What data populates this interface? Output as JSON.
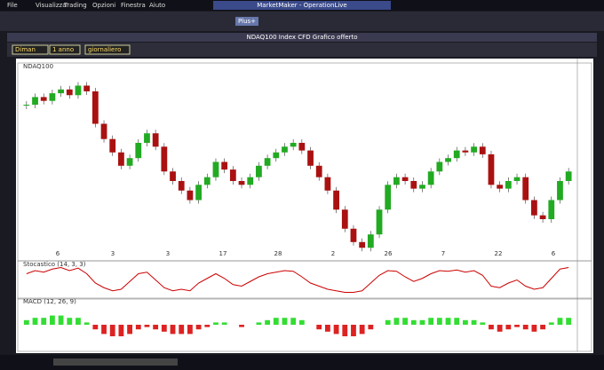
{
  "app_title": "MarketMaker - OperationLive",
  "menu": [
    "File",
    "Visualizza",
    "Trading",
    "Opzioni",
    "Finestra",
    "Aiuto"
  ],
  "toolbar_button": "Plus+",
  "window_title": "NDAQ100 Index CFD Grafico offerto",
  "controls": [
    "Diman",
    "1 anno",
    "giornaliero"
  ],
  "x_labels": [
    "6",
    "3",
    "3",
    "17",
    "28",
    "2",
    "26",
    "7",
    "22",
    "6"
  ],
  "chart_data": [
    {
      "type": "candlestick",
      "title": "NDAQ100",
      "ylim": [
        0,
        100
      ],
      "up_color": "#22aa22",
      "down_color": "#aa1111",
      "values": [
        80,
        84,
        82,
        86,
        88,
        85,
        90,
        87,
        70,
        62,
        55,
        48,
        52,
        60,
        65,
        58,
        45,
        40,
        35,
        30,
        38,
        42,
        50,
        46,
        40,
        38,
        42,
        48,
        52,
        55,
        58,
        60,
        56,
        48,
        42,
        35,
        25,
        15,
        8,
        5,
        12,
        25,
        38,
        42,
        40,
        36,
        38,
        45,
        50,
        52,
        56,
        55,
        58,
        54,
        38,
        36,
        40,
        42,
        30,
        22,
        20,
        30,
        40,
        45
      ]
    },
    {
      "type": "line",
      "title": "Stocastico (14, 3, 3)",
      "ylim": [
        0,
        100
      ],
      "color": "#cc0000",
      "values": [
        70,
        80,
        75,
        85,
        90,
        80,
        88,
        70,
        40,
        25,
        15,
        20,
        45,
        70,
        75,
        50,
        25,
        15,
        20,
        15,
        40,
        55,
        70,
        55,
        35,
        30,
        45,
        60,
        70,
        75,
        80,
        78,
        60,
        40,
        30,
        20,
        15,
        10,
        10,
        15,
        40,
        65,
        80,
        78,
        60,
        45,
        55,
        70,
        80,
        78,
        82,
        75,
        80,
        65,
        30,
        25,
        40,
        50,
        30,
        20,
        25,
        55,
        85,
        90
      ]
    },
    {
      "type": "bar",
      "title": "MACD (12, 26, 9)",
      "ylim": [
        -10,
        10
      ],
      "up_color": "#33dd33",
      "down_color": "#dd2222",
      "values": [
        2,
        3,
        3,
        4,
        4,
        3,
        3,
        1,
        -2,
        -4,
        -5,
        -5,
        -4,
        -2,
        -1,
        -2,
        -3,
        -4,
        -4,
        -4,
        -2,
        -1,
        1,
        1,
        0,
        -1,
        0,
        1,
        2,
        3,
        3,
        3,
        2,
        0,
        -2,
        -3,
        -4,
        -5,
        -5,
        -4,
        -2,
        0,
        2,
        3,
        3,
        2,
        2,
        3,
        3,
        3,
        3,
        2,
        2,
        1,
        -2,
        -3,
        -2,
        -1,
        -2,
        -3,
        -2,
        1,
        3,
        3
      ]
    }
  ]
}
